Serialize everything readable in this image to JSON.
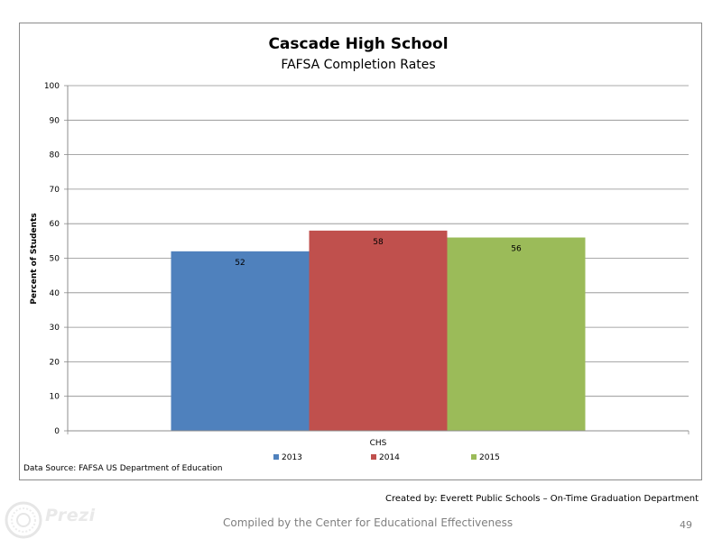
{
  "chart_data": {
    "type": "bar",
    "title": "Cascade High School",
    "subtitle": "FAFSA Completion Rates",
    "categories": [
      "CHS"
    ],
    "series": [
      {
        "name": "2013",
        "values": [
          52
        ],
        "color": "#4f81bd"
      },
      {
        "name": "2014",
        "values": [
          58
        ],
        "color": "#c0504d"
      },
      {
        "name": "2015",
        "values": [
          56
        ],
        "color": "#9bbb59"
      }
    ],
    "xlabel": "",
    "ylabel": "Percent of Students",
    "ylim": [
      0,
      100
    ],
    "yticks": [
      0,
      10,
      20,
      30,
      40,
      50,
      60,
      70,
      80,
      90,
      100
    ],
    "grid": true,
    "legend": "bottom"
  },
  "footer": {
    "source": "Data Source: FAFSA US Department of Education",
    "credit": "Created by: Everett Public Schools – On-Time Graduation Department",
    "compiled": "Compiled by the Center for Educational Effectiveness",
    "page_number": "49"
  },
  "branding": {
    "logo_text": "Prezi",
    "logo_icon": "prezi-logo-icon"
  }
}
